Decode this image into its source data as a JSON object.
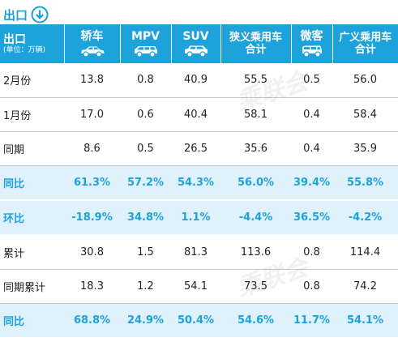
{
  "title": "出口",
  "header": {
    "first": {
      "main": "出口",
      "unit": "(单位：万辆)"
    },
    "columns": [
      {
        "label": "轿车",
        "icon": "sedan-icon"
      },
      {
        "label": "MPV",
        "icon": "mpv-icon"
      },
      {
        "label": "SUV",
        "icon": "suv-icon"
      },
      {
        "label_line1": "狭义乘用车",
        "label_line2": "合计"
      },
      {
        "label": "微客",
        "icon": "minivan-icon"
      },
      {
        "label_line1": "广义乘用车",
        "label_line2": "合计"
      }
    ]
  },
  "rows": [
    {
      "label": "2月份",
      "cells": [
        "13.8",
        "0.8",
        "40.9",
        "55.5",
        "0.5",
        "56.0"
      ]
    },
    {
      "label": "1月份",
      "cells": [
        "17.0",
        "0.6",
        "40.4",
        "58.1",
        "0.4",
        "58.4"
      ]
    },
    {
      "label": "同期",
      "cells": [
        "8.6",
        "0.5",
        "26.5",
        "35.6",
        "0.4",
        "35.9"
      ]
    },
    {
      "label": "同比",
      "cells": [
        "61.3%",
        "57.2%",
        "54.3%",
        "56.0%",
        "39.4%",
        "55.8%"
      ]
    },
    {
      "label": "环比",
      "cells": [
        "-18.9%",
        "34.8%",
        "1.1%",
        "-4.4%",
        "36.5%",
        "-4.2%"
      ]
    },
    {
      "label": "累计",
      "cells": [
        "30.8",
        "1.5",
        "81.3",
        "113.6",
        "0.8",
        "114.4"
      ]
    },
    {
      "label": "同期累计",
      "cells": [
        "18.3",
        "1.2",
        "54.1",
        "73.5",
        "0.8",
        "74.2"
      ]
    },
    {
      "label": "同比",
      "cells": [
        "68.8%",
        "24.9%",
        "50.4%",
        "54.6%",
        "11.7%",
        "54.1%"
      ]
    }
  ],
  "watermark": "乘联会",
  "colors": {
    "accent": "#1da2dc",
    "rate_row_bg": "#dff2fb",
    "text": "#222222"
  }
}
